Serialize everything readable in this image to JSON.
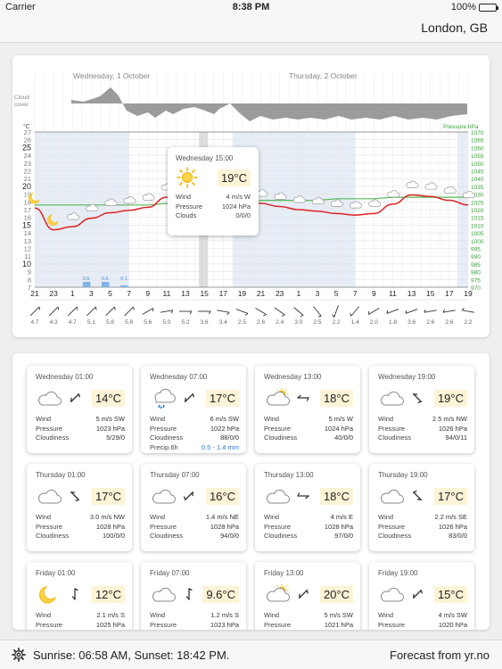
{
  "status_bar": {
    "carrier": "Carrier",
    "time": "8:38 PM",
    "battery": "100%"
  },
  "header": {
    "location": "London, GB"
  },
  "chart": {
    "day_labels": [
      "Wednesday, 1 October",
      "Thursday, 2 October"
    ],
    "cloud_label": [
      "Cloud",
      "cover"
    ],
    "temp_unit": "°C",
    "pressure_label": "Pressure hPa",
    "temp_ticks": [
      "27",
      "26",
      "25",
      "24",
      "23",
      "22",
      "21",
      "20",
      "19",
      "18",
      "17",
      "16",
      "15",
      "14",
      "13",
      "12",
      "11",
      "10",
      "9",
      "8",
      "7"
    ],
    "pressure_ticks": [
      "1070",
      "1065",
      "1060",
      "1055",
      "1050",
      "1045",
      "1040",
      "1035",
      "1030",
      "1025",
      "1020",
      "1015",
      "1010",
      "1005",
      "1000",
      "995",
      "990",
      "985",
      "980",
      "975",
      "970"
    ],
    "hours": [
      "21",
      "23",
      "1",
      "3",
      "5",
      "7",
      "9",
      "11",
      "13",
      "15",
      "17",
      "19",
      "21",
      "23",
      "1",
      "3",
      "5",
      "7",
      "9",
      "11",
      "13",
      "15",
      "17",
      "19"
    ],
    "wind_speeds": [
      "4.7",
      "4.3",
      "4.7",
      "5.1",
      "5.8",
      "5.6",
      "5.6",
      "5.0",
      "5.2",
      "3.6",
      "3.4",
      "2.5",
      "2.6",
      "2.4",
      "3.0",
      "2.5",
      "2.2",
      "1.4",
      "2.0",
      "1.8",
      "3.6",
      "2.6",
      "2.6",
      "2.2"
    ],
    "precip_labels": [
      "0.6",
      "0.6",
      "0.1"
    ],
    "colors": {
      "temperature": "#dd2222",
      "pressure": "#55b855",
      "night": "#e6edf6",
      "cloud": "#8a8a8a",
      "precip": "#7fb3e8"
    }
  },
  "chart_data": {
    "type": "line",
    "x": [
      "21",
      "23",
      "1",
      "3",
      "5",
      "7",
      "9",
      "11",
      "13",
      "15",
      "17",
      "19",
      "21",
      "23",
      "1",
      "3",
      "5",
      "7",
      "9",
      "11",
      "13",
      "15",
      "17",
      "19"
    ],
    "series": [
      {
        "name": "Temperature",
        "unit": "°C",
        "values": [
          17.2,
          14.4,
          14.8,
          15.9,
          16.6,
          16.9,
          17.3,
          18.6,
          19.0,
          18.9,
          18.6,
          18.1,
          17.8,
          17.4,
          17.0,
          16.8,
          16.5,
          16.3,
          16.5,
          17.7,
          18.9,
          18.7,
          18.2,
          17.6
        ]
      },
      {
        "name": "Pressure",
        "unit": "hPa",
        "values": [
          1023,
          1023,
          1023,
          1023,
          1023,
          1023,
          1023,
          1024,
          1024,
          1024,
          1025,
          1025,
          1026,
          1026,
          1026,
          1026,
          1027,
          1027,
          1027,
          1028,
          1028,
          1028,
          1028,
          1028
        ]
      }
    ],
    "ylim_temp": [
      7,
      27
    ],
    "ylim_pressure": [
      970,
      1070
    ]
  },
  "popup": {
    "title": "Wednesday 15:00",
    "temp": "19°C",
    "rows": [
      {
        "label": "Wind",
        "value": "4 m/s W"
      },
      {
        "label": "Pressure",
        "value": "1024 hPa"
      },
      {
        "label": "Clouds",
        "value": "0/0/0"
      }
    ]
  },
  "forecasts": [
    {
      "title": "Wednesday 01:00",
      "temp": "14°C",
      "icon": "cloud-icon",
      "wind": "5 m/s SW",
      "pressure": "1023 hPa",
      "cloudiness": "5/29/0"
    },
    {
      "title": "Wednesday 07:00",
      "temp": "17°C",
      "icon": "rain-cloud-icon",
      "wind": "6 m/s SW",
      "pressure": "1022 hPa",
      "cloudiness": "88/0/0",
      "precip_label": "Precip.6h",
      "precip": "0.5 - 1.4 mm"
    },
    {
      "title": "Wednesday 13:00",
      "temp": "18°C",
      "icon": "sun-cloud-icon",
      "wind": "5 m/s W",
      "pressure": "1024 hPa",
      "cloudiness": "40/0/0"
    },
    {
      "title": "Wednesday 19:00",
      "temp": "19°C",
      "icon": "cloud-icon",
      "wind": "2.5 m/s NW",
      "pressure": "1026 hPa",
      "cloudiness": "94/0/11"
    },
    {
      "title": "Thursday 01:00",
      "temp": "17°C",
      "icon": "cloud-icon",
      "wind": "3.0 m/s NW",
      "pressure": "1028 hPa",
      "cloudiness": "100/0/0"
    },
    {
      "title": "Thursday 07:00",
      "temp": "16°C",
      "icon": "cloud-icon",
      "wind": "1.4 m/s NE",
      "pressure": "1028 hPa",
      "cloudiness": "94/0/0"
    },
    {
      "title": "Thursday 13:00",
      "temp": "18°C",
      "icon": "cloud-icon",
      "wind": "4 m/s E",
      "pressure": "1028 hPa",
      "cloudiness": "97/0/0"
    },
    {
      "title": "Thursday 19:00",
      "temp": "17°C",
      "icon": "cloud-icon",
      "wind": "2.2 m/s SE",
      "pressure": "1026 hPa",
      "cloudiness": "83/0/0"
    },
    {
      "title": "Friday 01:00",
      "temp": "12°C",
      "icon": "moon-icon",
      "wind": "2.1 m/s S",
      "pressure": "1025 hPa",
      "cloudiness": ""
    },
    {
      "title": "Friday 07:00",
      "temp": "9.6°C",
      "icon": "cloud-icon",
      "wind": "1.2 m/s S",
      "pressure": "1023 hPa",
      "cloudiness": ""
    },
    {
      "title": "Friday 13:00",
      "temp": "20°C",
      "icon": "sun-cloud-icon",
      "wind": "5 m/s SW",
      "pressure": "1021 hPa",
      "cloudiness": ""
    },
    {
      "title": "Friday 19:00",
      "temp": "15°C",
      "icon": "cloud-icon",
      "wind": "4 m/s SW",
      "pressure": "1020 hPa",
      "cloudiness": ""
    }
  ],
  "labels": {
    "wind": "Wind",
    "pressure": "Pressure",
    "cloudiness": "Cloudiness"
  },
  "footer": {
    "sun": "Sunrise: 06:58 AM, Sunset: 18:42 PM.",
    "source": "Forecast from yr.no"
  }
}
